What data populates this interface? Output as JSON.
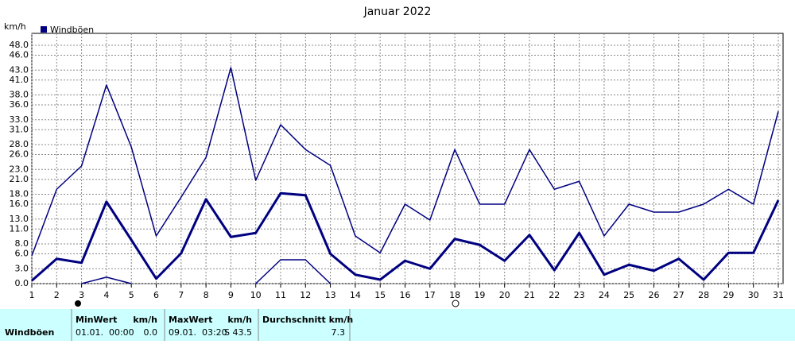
{
  "chart_data": {
    "type": "line",
    "title": "Januar 2022",
    "y_unit": "km/h",
    "legend_label": "Windböen",
    "x": [
      1,
      2,
      3,
      4,
      5,
      6,
      7,
      8,
      9,
      10,
      11,
      12,
      13,
      14,
      15,
      16,
      17,
      18,
      19,
      20,
      21,
      22,
      23,
      24,
      25,
      26,
      27,
      28,
      29,
      30,
      31
    ],
    "xlim": [
      1,
      31
    ],
    "xticks": [
      1,
      2,
      3,
      4,
      5,
      6,
      7,
      8,
      9,
      10,
      11,
      12,
      13,
      14,
      15,
      16,
      17,
      18,
      19,
      20,
      21,
      22,
      23,
      24,
      25,
      26,
      27,
      28,
      29,
      30,
      31
    ],
    "ylim": [
      0,
      48
    ],
    "yticks": [
      {
        "value": 0,
        "label": "0.0"
      },
      {
        "value": 3,
        "label": "3.0"
      },
      {
        "value": 6,
        "label": "6.0"
      },
      {
        "value": 8,
        "label": "8.0"
      },
      {
        "value": 11,
        "label": "11.0"
      },
      {
        "value": 13,
        "label": "13.0"
      },
      {
        "value": 16,
        "label": "16.0"
      },
      {
        "value": 18,
        "label": "18.0"
      },
      {
        "value": 21,
        "label": "21.0"
      },
      {
        "value": 23,
        "label": "23.0"
      },
      {
        "value": 26,
        "label": "26.0"
      },
      {
        "value": 28,
        "label": "28.0"
      },
      {
        "value": 31,
        "label": "31.0"
      },
      {
        "value": 33,
        "label": "33.0"
      },
      {
        "value": 36,
        "label": "36.0"
      },
      {
        "value": 38,
        "label": "38.0"
      },
      {
        "value": 41,
        "label": "41.0"
      },
      {
        "value": 43,
        "label": "43.0"
      },
      {
        "value": 46,
        "label": "46.0"
      },
      {
        "value": 48,
        "label": "48.0"
      }
    ],
    "grid": true,
    "series": [
      {
        "color": "#000080",
        "width": 1.5,
        "values": [
          5.6,
          19,
          23.7,
          40,
          27.5,
          9.6,
          17.4,
          25.4,
          43.5,
          20.8,
          32,
          27,
          23.8,
          9.6,
          6.2,
          16,
          12.8,
          27,
          16,
          16,
          27,
          19,
          20.6,
          9.6,
          16,
          14.4,
          14.4,
          16,
          19,
          16,
          34.7
        ]
      },
      {
        "color": "#000080",
        "width": 3,
        "values": [
          0.6,
          5,
          4.2,
          16.5,
          8.8,
          1,
          6.1,
          17,
          9.4,
          10.2,
          18.2,
          17.8,
          6,
          1.8,
          0.8,
          4.6,
          3,
          9,
          7.8,
          4.6,
          9.8,
          2.7,
          10.2,
          1.8,
          3.8,
          2.6,
          5,
          0.8,
          6.2,
          6.2,
          16.8
        ]
      },
      {
        "color": "#000080",
        "width": 1.5,
        "values": [
          null,
          null,
          0,
          1.3,
          0,
          null,
          null,
          null,
          null,
          0,
          4.8,
          4.8,
          0,
          null,
          null,
          null,
          null,
          null,
          null,
          null,
          null,
          null,
          null,
          null,
          null,
          null,
          null,
          null,
          null,
          null,
          null
        ]
      }
    ]
  },
  "table": {
    "row_label": "Windböen",
    "headers": [
      "MinWert",
      "km/h",
      "MaxWert",
      "km/h",
      "Durchschnitt km/h"
    ],
    "cells": [
      "01.01.  00:00",
      "0.0",
      "09.01.  03:20",
      "S 43.5",
      "7.3"
    ]
  }
}
